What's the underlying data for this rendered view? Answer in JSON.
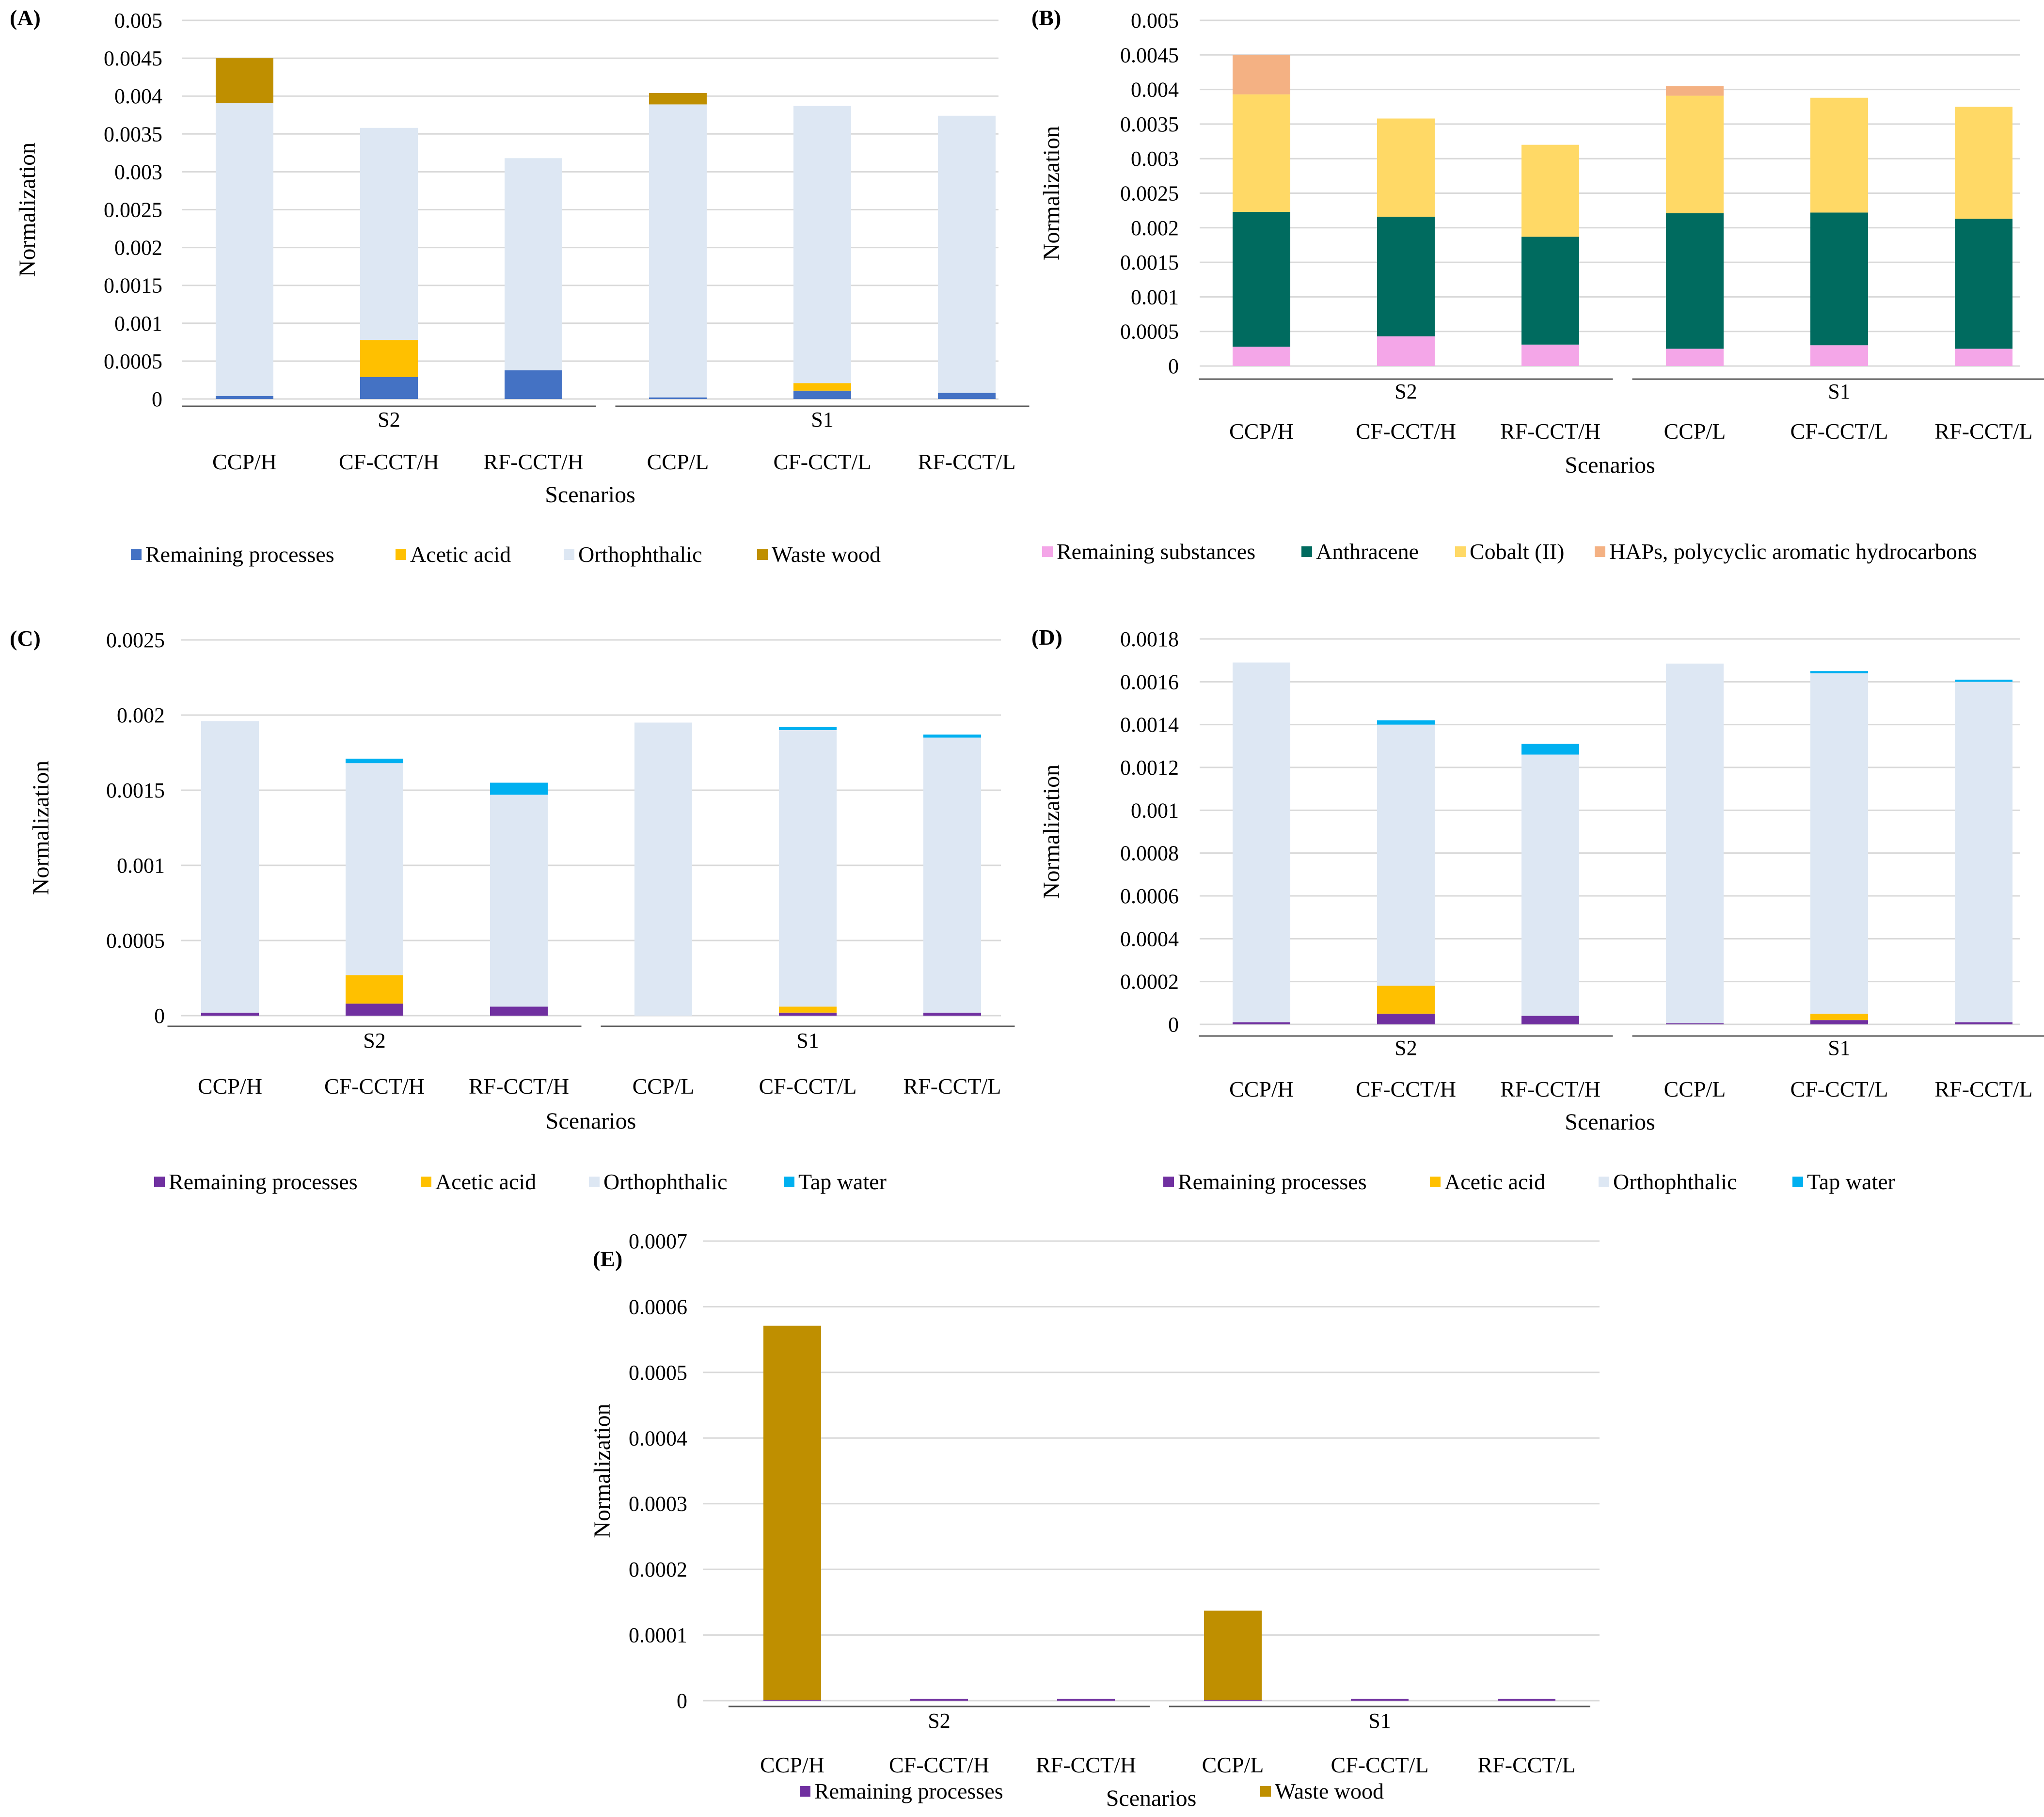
{
  "chart_data": [
    {
      "id": "A",
      "type": "bar",
      "stacked": true,
      "panel_label": "(A)",
      "ylabel": "Normalization",
      "xlabel": "Scenarios",
      "ylim": [
        0,
        0.005
      ],
      "yticks": [
        "0",
        "0.0005",
        "0.001",
        "0.0015",
        "0.002",
        "0.0025",
        "0.003",
        "0.0035",
        "0.004",
        "0.0045",
        "0.005"
      ],
      "groups": [
        {
          "label": "S2",
          "categories": [
            "CCP/H",
            "CF-CCT/H",
            "RF-CCT/H"
          ]
        },
        {
          "label": "S1",
          "categories": [
            "CCP/L",
            "CF-CCT/L",
            "RF-CCT/L"
          ]
        }
      ],
      "categories": [
        "CCP/H",
        "CF-CCT/H",
        "RF-CCT/H",
        "CCP/L",
        "CF-CCT/L",
        "RF-CCT/L"
      ],
      "series": [
        {
          "name": "Remaining processes",
          "color": "#4472C4",
          "values": [
            4e-05,
            0.00029,
            0.00038,
            2e-05,
            0.00011,
            8e-05
          ]
        },
        {
          "name": "Acetic acid",
          "color": "#FFC000",
          "values": [
            0,
            0.00049,
            0,
            0,
            0.0001,
            0
          ]
        },
        {
          "name": "Orthophthalic",
          "color": "#DDE7F3",
          "values": [
            0.00387,
            0.0028,
            0.0028,
            0.00387,
            0.00366,
            0.00366
          ]
        },
        {
          "name": "Waste wood",
          "color": "#BF8F00",
          "values": [
            0.00059,
            0,
            0,
            0.00015,
            0,
            0
          ]
        }
      ]
    },
    {
      "id": "B",
      "type": "bar",
      "stacked": true,
      "panel_label": "(B)",
      "ylabel": "Normalization",
      "xlabel": "Scenarios",
      "ylim": [
        0,
        0.005
      ],
      "yticks": [
        "0",
        "0.0005",
        "0.001",
        "0.0015",
        "0.002",
        "0.0025",
        "0.003",
        "0.0035",
        "0.004",
        "0.0045",
        "0.005"
      ],
      "groups": [
        {
          "label": "S2",
          "categories": [
            "CCP/H",
            "CF-CCT/H",
            "RF-CCT/H"
          ]
        },
        {
          "label": "S1",
          "categories": [
            "CCP/L",
            "CF-CCT/L",
            "RF-CCT/L"
          ]
        }
      ],
      "categories": [
        "CCP/H",
        "CF-CCT/H",
        "RF-CCT/H",
        "CCP/L",
        "CF-CCT/L",
        "RF-CCT/L"
      ],
      "series": [
        {
          "name": "Remaining substances",
          "color": "#F4A6E8",
          "values": [
            0.00028,
            0.00043,
            0.00031,
            0.00025,
            0.0003,
            0.00025
          ]
        },
        {
          "name": "Anthracene",
          "color": "#006B5F",
          "values": [
            0.00195,
            0.00173,
            0.00156,
            0.00196,
            0.00192,
            0.00188
          ]
        },
        {
          "name": "Cobalt (II)",
          "color": "#FFD966",
          "values": [
            0.0017,
            0.00142,
            0.00133,
            0.0017,
            0.00166,
            0.00162
          ]
        },
        {
          "name": "HAPs, polycyclic aromatic hydrocarbons",
          "color": "#F4B183",
          "values": [
            0.00057,
            0,
            0,
            0.00014,
            0,
            0
          ]
        }
      ]
    },
    {
      "id": "C",
      "type": "bar",
      "stacked": true,
      "panel_label": "(C)",
      "ylabel": "Normalization",
      "xlabel": "Scenarios",
      "ylim": [
        0,
        0.0025
      ],
      "yticks": [
        "0",
        "0.0005",
        "0.001",
        "0.0015",
        "0.002",
        "0.0025"
      ],
      "groups": [
        {
          "label": "S2",
          "categories": [
            "CCP/H",
            "CF-CCT/H",
            "RF-CCT/H"
          ]
        },
        {
          "label": "S1",
          "categories": [
            "CCP/L",
            "CF-CCT/L",
            "RF-CCT/L"
          ]
        }
      ],
      "categories": [
        "CCP/H",
        "CF-CCT/H",
        "RF-CCT/H",
        "CCP/L",
        "CF-CCT/L",
        "RF-CCT/L"
      ],
      "series": [
        {
          "name": "Remaining processes",
          "color": "#7030A0",
          "values": [
            2e-05,
            8e-05,
            6e-05,
            0,
            2e-05,
            2e-05
          ]
        },
        {
          "name": "Acetic acid",
          "color": "#FFC000",
          "values": [
            0,
            0.00019,
            0,
            0,
            4e-05,
            0
          ]
        },
        {
          "name": "Orthophthalic",
          "color": "#DDE7F3",
          "values": [
            0.00194,
            0.00141,
            0.00141,
            0.00195,
            0.00184,
            0.00183
          ]
        },
        {
          "name": "Tap water",
          "color": "#00B0F0",
          "values": [
            0,
            3e-05,
            8e-05,
            0,
            2e-05,
            2e-05
          ]
        }
      ]
    },
    {
      "id": "D",
      "type": "bar",
      "stacked": true,
      "panel_label": "(D)",
      "ylabel": "Normalization",
      "xlabel": "Scenarios",
      "ylim": [
        0,
        0.0018
      ],
      "yticks": [
        "0",
        "0.0002",
        "0.0004",
        "0.0006",
        "0.0008",
        "0.001",
        "0.0012",
        "0.0014",
        "0.0016",
        "0.0018"
      ],
      "groups": [
        {
          "label": "S2",
          "categories": [
            "CCP/H",
            "CF-CCT/H",
            "RF-CCT/H"
          ]
        },
        {
          "label": "S1",
          "categories": [
            "CCP/L",
            "CF-CCT/L",
            "RF-CCT/L"
          ]
        }
      ],
      "categories": [
        "CCP/H",
        "CF-CCT/H",
        "RF-CCT/H",
        "CCP/L",
        "CF-CCT/L",
        "RF-CCT/L"
      ],
      "series": [
        {
          "name": "Remaining processes",
          "color": "#7030A0",
          "values": [
            1e-05,
            5e-05,
            4e-05,
            5e-06,
            2e-05,
            1e-05
          ]
        },
        {
          "name": "Acetic acid",
          "color": "#FFC000",
          "values": [
            0,
            0.00013,
            0,
            0,
            3e-05,
            0
          ]
        },
        {
          "name": "Orthophthalic",
          "color": "#DDE7F3",
          "values": [
            0.00168,
            0.00122,
            0.00122,
            0.00168,
            0.00159,
            0.00159
          ]
        },
        {
          "name": "Tap water",
          "color": "#00B0F0",
          "values": [
            0,
            2e-05,
            5e-05,
            0,
            1e-05,
            1e-05
          ]
        }
      ]
    },
    {
      "id": "E",
      "type": "bar",
      "stacked": true,
      "panel_label": "(E)",
      "ylabel": "Normalization",
      "xlabel": "Scenarios",
      "ylim": [
        0,
        0.0007
      ],
      "yticks": [
        "0",
        "0.0001",
        "0.0002",
        "0.0003",
        "0.0004",
        "0.0005",
        "0.0006",
        "0.0007"
      ],
      "groups": [
        {
          "label": "S2",
          "categories": [
            "CCP/H",
            "CF-CCT/H",
            "RF-CCT/H"
          ]
        },
        {
          "label": "S1",
          "categories": [
            "CCP/L",
            "CF-CCT/L",
            "RF-CCT/L"
          ]
        }
      ],
      "categories": [
        "CCP/H",
        "CF-CCT/H",
        "RF-CCT/H",
        "CCP/L",
        "CF-CCT/L",
        "RF-CCT/L"
      ],
      "series": [
        {
          "name": "Remaining processes",
          "color": "#7030A0",
          "values": [
            1e-06,
            2e-06,
            2e-06,
            1e-06,
            2e-06,
            2e-06
          ]
        },
        {
          "name": "Waste wood",
          "color": "#BF8F00",
          "values": [
            0.00057,
            0,
            0,
            0.000136,
            0,
            0
          ]
        }
      ]
    }
  ]
}
